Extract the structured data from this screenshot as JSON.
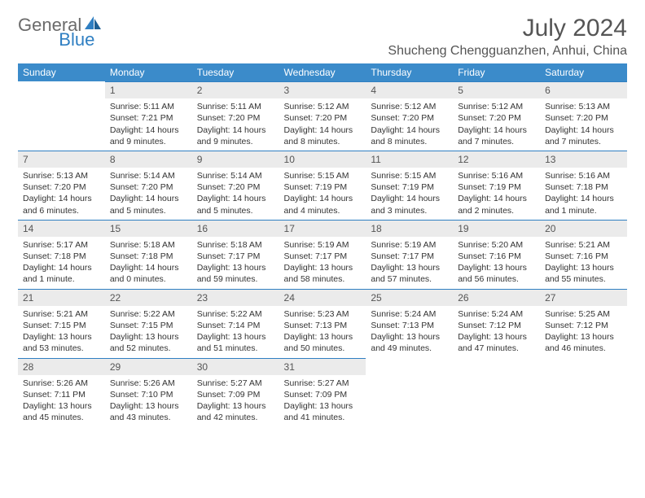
{
  "brand": {
    "part1": "General",
    "part2": "Blue"
  },
  "title": "July 2024",
  "location": "Shucheng Chengguanzhen, Anhui, China",
  "colors": {
    "header_bg": "#3b8bca",
    "header_text": "#ffffff",
    "daynum_bg": "#ebebeb",
    "rule": "#2f7fc2",
    "brand_gray": "#6b6b6b",
    "brand_blue": "#2f7fc2"
  },
  "weekdays": [
    "Sunday",
    "Monday",
    "Tuesday",
    "Wednesday",
    "Thursday",
    "Friday",
    "Saturday"
  ],
  "weeks": [
    [
      null,
      {
        "n": "1",
        "sr": "Sunrise: 5:11 AM",
        "ss": "Sunset: 7:21 PM",
        "dl": "Daylight: 14 hours and 9 minutes."
      },
      {
        "n": "2",
        "sr": "Sunrise: 5:11 AM",
        "ss": "Sunset: 7:20 PM",
        "dl": "Daylight: 14 hours and 9 minutes."
      },
      {
        "n": "3",
        "sr": "Sunrise: 5:12 AM",
        "ss": "Sunset: 7:20 PM",
        "dl": "Daylight: 14 hours and 8 minutes."
      },
      {
        "n": "4",
        "sr": "Sunrise: 5:12 AM",
        "ss": "Sunset: 7:20 PM",
        "dl": "Daylight: 14 hours and 8 minutes."
      },
      {
        "n": "5",
        "sr": "Sunrise: 5:12 AM",
        "ss": "Sunset: 7:20 PM",
        "dl": "Daylight: 14 hours and 7 minutes."
      },
      {
        "n": "6",
        "sr": "Sunrise: 5:13 AM",
        "ss": "Sunset: 7:20 PM",
        "dl": "Daylight: 14 hours and 7 minutes."
      }
    ],
    [
      {
        "n": "7",
        "sr": "Sunrise: 5:13 AM",
        "ss": "Sunset: 7:20 PM",
        "dl": "Daylight: 14 hours and 6 minutes."
      },
      {
        "n": "8",
        "sr": "Sunrise: 5:14 AM",
        "ss": "Sunset: 7:20 PM",
        "dl": "Daylight: 14 hours and 5 minutes."
      },
      {
        "n": "9",
        "sr": "Sunrise: 5:14 AM",
        "ss": "Sunset: 7:20 PM",
        "dl": "Daylight: 14 hours and 5 minutes."
      },
      {
        "n": "10",
        "sr": "Sunrise: 5:15 AM",
        "ss": "Sunset: 7:19 PM",
        "dl": "Daylight: 14 hours and 4 minutes."
      },
      {
        "n": "11",
        "sr": "Sunrise: 5:15 AM",
        "ss": "Sunset: 7:19 PM",
        "dl": "Daylight: 14 hours and 3 minutes."
      },
      {
        "n": "12",
        "sr": "Sunrise: 5:16 AM",
        "ss": "Sunset: 7:19 PM",
        "dl": "Daylight: 14 hours and 2 minutes."
      },
      {
        "n": "13",
        "sr": "Sunrise: 5:16 AM",
        "ss": "Sunset: 7:18 PM",
        "dl": "Daylight: 14 hours and 1 minute."
      }
    ],
    [
      {
        "n": "14",
        "sr": "Sunrise: 5:17 AM",
        "ss": "Sunset: 7:18 PM",
        "dl": "Daylight: 14 hours and 1 minute."
      },
      {
        "n": "15",
        "sr": "Sunrise: 5:18 AM",
        "ss": "Sunset: 7:18 PM",
        "dl": "Daylight: 14 hours and 0 minutes."
      },
      {
        "n": "16",
        "sr": "Sunrise: 5:18 AM",
        "ss": "Sunset: 7:17 PM",
        "dl": "Daylight: 13 hours and 59 minutes."
      },
      {
        "n": "17",
        "sr": "Sunrise: 5:19 AM",
        "ss": "Sunset: 7:17 PM",
        "dl": "Daylight: 13 hours and 58 minutes."
      },
      {
        "n": "18",
        "sr": "Sunrise: 5:19 AM",
        "ss": "Sunset: 7:17 PM",
        "dl": "Daylight: 13 hours and 57 minutes."
      },
      {
        "n": "19",
        "sr": "Sunrise: 5:20 AM",
        "ss": "Sunset: 7:16 PM",
        "dl": "Daylight: 13 hours and 56 minutes."
      },
      {
        "n": "20",
        "sr": "Sunrise: 5:21 AM",
        "ss": "Sunset: 7:16 PM",
        "dl": "Daylight: 13 hours and 55 minutes."
      }
    ],
    [
      {
        "n": "21",
        "sr": "Sunrise: 5:21 AM",
        "ss": "Sunset: 7:15 PM",
        "dl": "Daylight: 13 hours and 53 minutes."
      },
      {
        "n": "22",
        "sr": "Sunrise: 5:22 AM",
        "ss": "Sunset: 7:15 PM",
        "dl": "Daylight: 13 hours and 52 minutes."
      },
      {
        "n": "23",
        "sr": "Sunrise: 5:22 AM",
        "ss": "Sunset: 7:14 PM",
        "dl": "Daylight: 13 hours and 51 minutes."
      },
      {
        "n": "24",
        "sr": "Sunrise: 5:23 AM",
        "ss": "Sunset: 7:13 PM",
        "dl": "Daylight: 13 hours and 50 minutes."
      },
      {
        "n": "25",
        "sr": "Sunrise: 5:24 AM",
        "ss": "Sunset: 7:13 PM",
        "dl": "Daylight: 13 hours and 49 minutes."
      },
      {
        "n": "26",
        "sr": "Sunrise: 5:24 AM",
        "ss": "Sunset: 7:12 PM",
        "dl": "Daylight: 13 hours and 47 minutes."
      },
      {
        "n": "27",
        "sr": "Sunrise: 5:25 AM",
        "ss": "Sunset: 7:12 PM",
        "dl": "Daylight: 13 hours and 46 minutes."
      }
    ],
    [
      {
        "n": "28",
        "sr": "Sunrise: 5:26 AM",
        "ss": "Sunset: 7:11 PM",
        "dl": "Daylight: 13 hours and 45 minutes."
      },
      {
        "n": "29",
        "sr": "Sunrise: 5:26 AM",
        "ss": "Sunset: 7:10 PM",
        "dl": "Daylight: 13 hours and 43 minutes."
      },
      {
        "n": "30",
        "sr": "Sunrise: 5:27 AM",
        "ss": "Sunset: 7:09 PM",
        "dl": "Daylight: 13 hours and 42 minutes."
      },
      {
        "n": "31",
        "sr": "Sunrise: 5:27 AM",
        "ss": "Sunset: 7:09 PM",
        "dl": "Daylight: 13 hours and 41 minutes."
      },
      null,
      null,
      null
    ]
  ]
}
